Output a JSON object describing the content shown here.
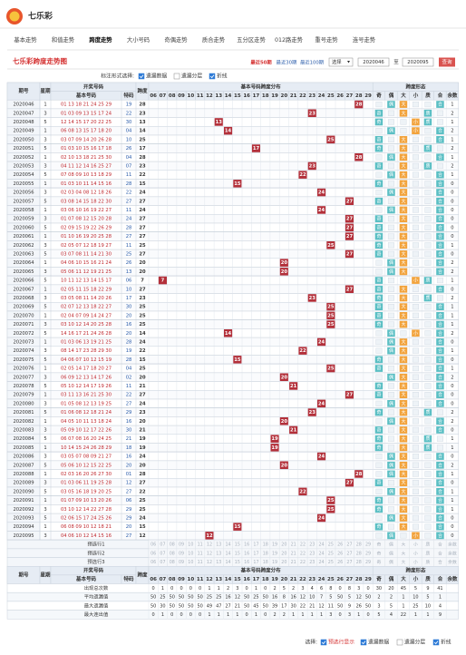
{
  "header": {
    "brand": "七乐彩"
  },
  "nav": [
    "基本走势",
    "和值走势",
    "跨度走势",
    "大小号码",
    "奇偶走势",
    "质合走势",
    "五分区走势",
    "012路走势",
    "重号走势",
    "连号走势"
  ],
  "nav_active": 2,
  "toolbar": {
    "title": "七乐彩跨度走势图",
    "ranges": [
      "最近50期",
      "最近30期",
      "最近100期"
    ],
    "active_range": 0,
    "select": "选择",
    "from": "2020046",
    "to_label": "至",
    "to": "2020095",
    "button": "查询"
  },
  "options": {
    "label": "标注形式选择:",
    "items": [
      {
        "label": "遗漏数据",
        "checked": true
      },
      {
        "label": "遗漏分层",
        "checked": false
      },
      {
        "label": "折线",
        "checked": true
      }
    ]
  },
  "table": {
    "head": {
      "period": "期号",
      "week": "星期",
      "draw": "开奖号码",
      "basic": "基本号码",
      "special": "特码",
      "span": "跨度",
      "dist": "基本号码跨度分布",
      "form": "跨度形态"
    },
    "spanCols": [
      "06",
      "07",
      "08",
      "09",
      "10",
      "11",
      "12",
      "13",
      "14",
      "15",
      "16",
      "17",
      "18",
      "19",
      "20",
      "21",
      "22",
      "23",
      "24",
      "25",
      "26",
      "27",
      "28",
      "29"
    ],
    "formCols": [
      "奇",
      "偶",
      "大",
      "小",
      "质",
      "合",
      "余数"
    ],
    "rows": [
      [
        "2020046",
        1,
        "01 13 18 21 24 25 29",
        "19",
        28,
        [
          "偶",
          "大",
          "合"
        ],
        1
      ],
      [
        "2020047",
        3,
        "01 03 09 13 15 17 24",
        "22",
        23,
        [
          "奇",
          "大",
          "质"
        ],
        2
      ],
      [
        "2020048",
        5,
        "12 14 15 17 20 22 25",
        "30",
        13,
        [
          "奇",
          "小",
          "质"
        ],
        1
      ],
      [
        "2020049",
        1,
        "06 08 13 15 17 18 20",
        "04",
        14,
        [
          "偶",
          "小",
          "合"
        ],
        2
      ],
      [
        "2020050",
        3,
        "03 07 09 14 20 26 28",
        "10",
        25,
        [
          "奇",
          "大",
          "合"
        ],
        1
      ],
      [
        "2020051",
        5,
        "01 03 10 15 16 17 18",
        "26",
        17,
        [
          "奇",
          "大",
          "质"
        ],
        2
      ],
      [
        "2020052",
        1,
        "02 10 13 18 21 25 30",
        "04",
        28,
        [
          "偶",
          "大",
          "合"
        ],
        1
      ],
      [
        "2020053",
        3,
        "04 11 12 14 16 25 27",
        "07",
        23,
        [
          "奇",
          "大",
          "质"
        ],
        2
      ],
      [
        "2020054",
        5,
        "07 08 09 10 13 18 29",
        "11",
        22,
        [
          "偶",
          "大",
          "合"
        ],
        1
      ],
      [
        "2020055",
        1,
        "01 03 10 11 14 15 16",
        "28",
        15,
        [
          "奇",
          "大",
          "合"
        ],
        0
      ],
      [
        "2020056",
        3,
        "02 03 04 08 12 18 26",
        "22",
        24,
        [
          "偶",
          "大",
          "合"
        ],
        0
      ],
      [
        "2020057",
        5,
        "03 08 14 15 18 22 30",
        "27",
        27,
        [
          "奇",
          "大",
          "合"
        ],
        0
      ],
      [
        "2020058",
        1,
        "03 06 10 16 19 22 27",
        "11",
        24,
        [
          "偶",
          "大",
          "合"
        ],
        0
      ],
      [
        "2020059",
        3,
        "01 07 08 12 15 20 28",
        "24",
        27,
        [
          "奇",
          "大",
          "合"
        ],
        0
      ],
      [
        "2020060",
        5,
        "02 09 15 19 22 26 29",
        "28",
        27,
        [
          "奇",
          "大",
          "合"
        ],
        0
      ],
      [
        "2020061",
        1,
        "01 10 16 19 20 25 28",
        "27",
        27,
        [
          "奇",
          "大",
          "合"
        ],
        0
      ],
      [
        "2020062",
        3,
        "02 05 07 12 18 19 27",
        "11",
        25,
        [
          "奇",
          "大",
          "合"
        ],
        1
      ],
      [
        "2020063",
        5,
        "03 07 08 11 14 21 30",
        "25",
        27,
        [
          "奇",
          "大",
          "合"
        ],
        0
      ],
      [
        "2020064",
        1,
        "04 06 10 15 16 21 24",
        "26",
        20,
        [
          "偶",
          "大",
          "合"
        ],
        2
      ],
      [
        "2020065",
        3,
        "05 06 11 12 19 21 25",
        "13",
        20,
        [
          "偶",
          "大",
          "合"
        ],
        2
      ],
      [
        "2020066",
        5,
        "10 11 12 13 14 15 17",
        "06",
        7,
        [
          "奇",
          "小",
          "质"
        ],
        1
      ],
      [
        "2020067",
        1,
        "02 05 11 15 18 22 29",
        "10",
        27,
        [
          "奇",
          "大",
          "合"
        ],
        0
      ],
      [
        "2020068",
        3,
        "03 05 08 11 14 20 26",
        "17",
        23,
        [
          "奇",
          "大",
          "质"
        ],
        2
      ],
      [
        "2020069",
        5,
        "02 07 12 13 18 22 27",
        "30",
        25,
        [
          "奇",
          "大",
          "合"
        ],
        1
      ],
      [
        "2020070",
        1,
        "02 04 07 09 14 24 27",
        "20",
        25,
        [
          "奇",
          "大",
          "合"
        ],
        1
      ],
      [
        "2020071",
        3,
        "03 10 12 14 20 25 28",
        "16",
        25,
        [
          "奇",
          "大",
          "合"
        ],
        1
      ],
      [
        "2020072",
        5,
        "14 16 17 21 24 26 28",
        "20",
        14,
        [
          "偶",
          "小",
          "合"
        ],
        2
      ],
      [
        "2020073",
        1,
        "01 03 06 13 19 21 25",
        "28",
        24,
        [
          "偶",
          "大",
          "合"
        ],
        0
      ],
      [
        "2020074",
        3,
        "08 14 17 23 28 29 30",
        "19",
        22,
        [
          "偶",
          "大",
          "合"
        ],
        1
      ],
      [
        "2020075",
        5,
        "04 06 07 10 12 15 19",
        "28",
        15,
        [
          "奇",
          "大",
          "合"
        ],
        0
      ],
      [
        "2020076",
        1,
        "02 05 14 17 18 20 27",
        "04",
        25,
        [
          "奇",
          "大",
          "合"
        ],
        1
      ],
      [
        "2020077",
        3,
        "06 09 12 13 14 17 26",
        "02",
        20,
        [
          "偶",
          "大",
          "合"
        ],
        2
      ],
      [
        "2020078",
        5,
        "05 10 12 14 17 19 26",
        "11",
        21,
        [
          "奇",
          "大",
          "合"
        ],
        0
      ],
      [
        "2020079",
        1,
        "03 11 13 16 21 25 30",
        "22",
        27,
        [
          "奇",
          "大",
          "合"
        ],
        0
      ],
      [
        "2020080",
        3,
        "01 05 08 12 13 19 25",
        "27",
        24,
        [
          "偶",
          "大",
          "合"
        ],
        0
      ],
      [
        "2020081",
        5,
        "01 06 08 12 18 21 24",
        "29",
        23,
        [
          "奇",
          "大",
          "质"
        ],
        2
      ],
      [
        "2020082",
        1,
        "04 05 10 11 13 18 24",
        "16",
        20,
        [
          "偶",
          "大",
          "合"
        ],
        2
      ],
      [
        "2020083",
        3,
        "05 09 10 12 17 22 26",
        "30",
        21,
        [
          "奇",
          "大",
          "合"
        ],
        0
      ],
      [
        "2020084",
        5,
        "06 07 08 16 20 24 25",
        "21",
        19,
        [
          "奇",
          "大",
          "质"
        ],
        1
      ],
      [
        "2020085",
        1,
        "10 14 15 24 26 28 29",
        "18",
        19,
        [
          "奇",
          "大",
          "质"
        ],
        1
      ],
      [
        "2020086",
        3,
        "03 05 07 08 09 21 27",
        "16",
        24,
        [
          "偶",
          "大",
          "合"
        ],
        0
      ],
      [
        "2020087",
        5,
        "05 06 10 12 15 22 25",
        "20",
        20,
        [
          "偶",
          "大",
          "合"
        ],
        2
      ],
      [
        "2020088",
        1,
        "02 03 16 20 26 27 30",
        "01",
        28,
        [
          "偶",
          "大",
          "合"
        ],
        1
      ],
      [
        "2020089",
        3,
        "01 03 06 11 19 25 28",
        "12",
        27,
        [
          "奇",
          "大",
          "合"
        ],
        0
      ],
      [
        "2020090",
        5,
        "03 05 16 18 19 20 25",
        "27",
        22,
        [
          "偶",
          "大",
          "合"
        ],
        1
      ],
      [
        "2020091",
        1,
        "01 07 09 10 13 20 26",
        "06",
        25,
        [
          "奇",
          "大",
          "合"
        ],
        1
      ],
      [
        "2020092",
        3,
        "03 10 12 14 22 27 28",
        "29",
        25,
        [
          "奇",
          "大",
          "合"
        ],
        1
      ],
      [
        "2020093",
        5,
        "02 06 15 17 24 25 26",
        "29",
        24,
        [
          "偶",
          "大",
          "合"
        ],
        0
      ],
      [
        "2020094",
        1,
        "06 08 09 10 12 18 21",
        "20",
        15,
        [
          "奇",
          "大",
          "合"
        ],
        0
      ],
      [
        "2020095",
        3,
        "04 06 10 12 14 15 16",
        "27",
        12,
        [
          "偶",
          "小",
          "合"
        ],
        0
      ]
    ],
    "preselect": [
      "预选行1",
      "预选行2",
      "预选行3"
    ]
  },
  "stats": [
    {
      "label": "出现总次数",
      "dist": [
        0,
        1,
        0,
        0,
        0,
        0,
        1,
        1,
        2,
        3,
        0,
        1,
        0,
        2,
        5,
        2,
        3,
        4,
        6,
        8,
        0,
        8,
        3,
        0
      ],
      "form": [
        30,
        20,
        45,
        5,
        9,
        41
      ]
    },
    {
      "label": "平均遗漏值",
      "dist": [
        50,
        25,
        50,
        50,
        50,
        50,
        25,
        25,
        16,
        12,
        50,
        25,
        50,
        16,
        8,
        16,
        12,
        10,
        7,
        5,
        50,
        5,
        12,
        50
      ],
      "form": [
        2,
        2,
        1,
        10,
        5,
        1
      ]
    },
    {
      "label": "最大遗漏值",
      "dist": [
        50,
        30,
        50,
        50,
        50,
        50,
        49,
        47,
        27,
        21,
        50,
        45,
        50,
        39,
        17,
        30,
        22,
        21,
        12,
        11,
        50,
        9,
        26,
        50
      ],
      "form": [
        3,
        5,
        1,
        25,
        10,
        4
      ]
    },
    {
      "label": "最大连出值",
      "dist": [
        0,
        1,
        0,
        0,
        0,
        0,
        1,
        1,
        1,
        1,
        0,
        1,
        0,
        2,
        2,
        1,
        1,
        1,
        1,
        3,
        0,
        3,
        1,
        0
      ],
      "form": [
        5,
        4,
        22,
        1,
        1,
        9
      ]
    }
  ],
  "footer": {
    "label": "选择:",
    "items": [
      {
        "label": "预选行显示",
        "checked": true
      },
      {
        "label": "遗漏数据",
        "checked": true
      },
      {
        "label": "遗漏分层",
        "checked": false
      },
      {
        "label": "折线",
        "checked": true
      }
    ]
  }
}
